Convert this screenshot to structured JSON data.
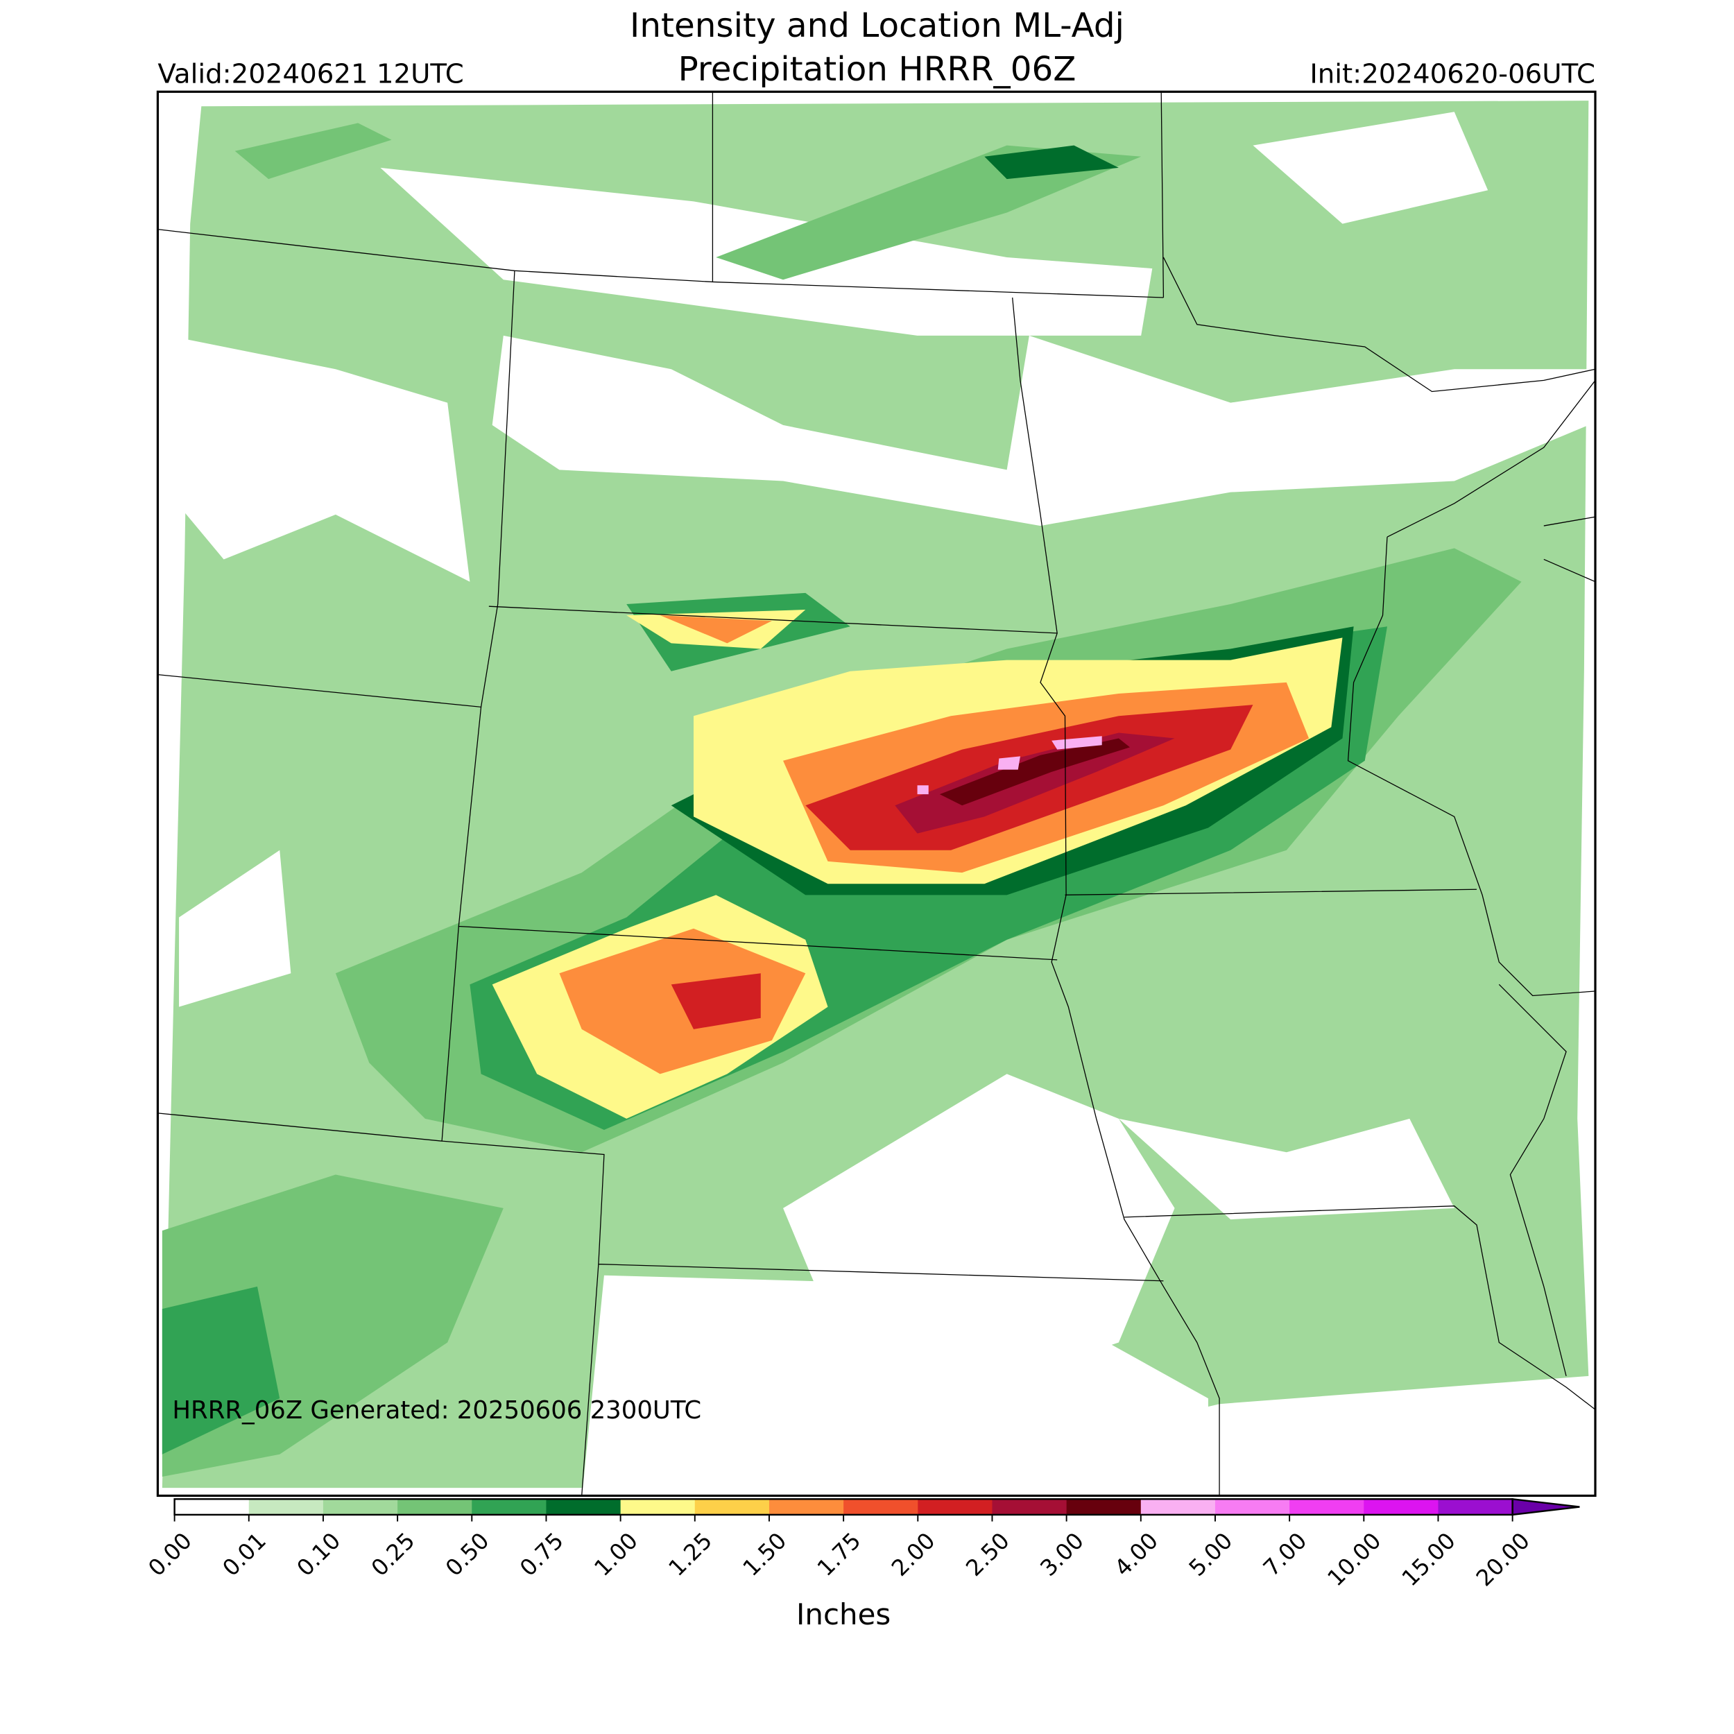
{
  "header": {
    "title": [
      "Intensity and Location ML-Adj",
      "Precipitation HRRR_06Z"
    ],
    "valid": "Valid:20240621 12UTC",
    "init": "Init:20240620-06UTC"
  },
  "map": {
    "generated": "HRRR_06Z Generated: 20250606 2300UTC"
  },
  "colorbar": {
    "label": "Inches",
    "ticks": [
      {
        "value": 0,
        "label": "0.00"
      },
      {
        "value": 0.01,
        "label": "0.01"
      },
      {
        "value": 0.1,
        "label": "0.10"
      },
      {
        "value": 0.25,
        "label": "0.25"
      },
      {
        "value": 0.5,
        "label": "0.50"
      },
      {
        "value": 0.75,
        "label": "0.75"
      },
      {
        "value": 1,
        "label": "1.00"
      },
      {
        "value": 1.25,
        "label": "1.25"
      },
      {
        "value": 1.5,
        "label": "1.50"
      },
      {
        "value": 1.75,
        "label": "1.75"
      },
      {
        "value": 2,
        "label": "2.00"
      },
      {
        "value": 2.5,
        "label": "2.50"
      },
      {
        "value": 3,
        "label": "3.00"
      },
      {
        "value": 4,
        "label": "4.00"
      },
      {
        "value": 5,
        "label": "5.00"
      },
      {
        "value": 7,
        "label": "7.00"
      },
      {
        "value": 10,
        "label": "10.00"
      },
      {
        "value": 15,
        "label": "15.00"
      },
      {
        "value": 20,
        "label": "20.00"
      }
    ],
    "colors": [
      "#ffffff",
      "#c7e9c0",
      "#a1d99b",
      "#74c476",
      "#31a354",
      "#006d2c",
      "#fef98a",
      "#fdd049",
      "#fd8d3c",
      "#f0502c",
      "#d21f22",
      "#a50f35",
      "#67000d",
      "#f9b0f2",
      "#f77cf3",
      "#f03ef2",
      "#dc14f0",
      "#9b0fd0"
    ],
    "extend_color": "#6a00a8"
  }
}
